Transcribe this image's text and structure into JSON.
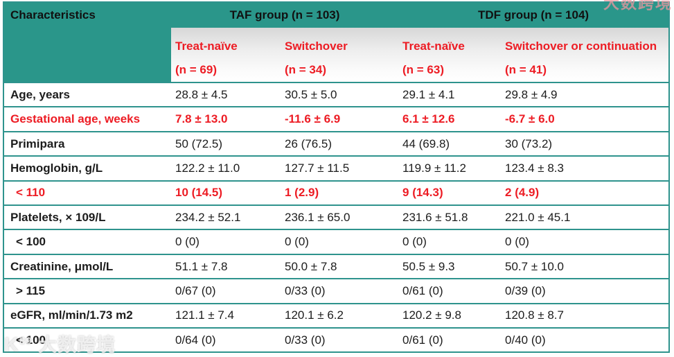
{
  "colors": {
    "header_teal": "#2A968A",
    "grid_line": "#2E938D",
    "highlight_red": "#ED1C24",
    "body_text": "#1C1C1C",
    "subheader_gradient_top": "#D7D7D7"
  },
  "table": {
    "col1_header": "Characteristics",
    "groups": [
      {
        "label": "TAF group (n = 103)",
        "subcols": [
          {
            "name": "Treat-naïve",
            "n": "(n = 69)"
          },
          {
            "name": "Switchover",
            "n": "(n = 34)"
          }
        ]
      },
      {
        "label": "TDF group (n = 104)",
        "subcols": [
          {
            "name": "Treat-naïve",
            "n": "(n = 63)"
          },
          {
            "name": "Switchover or continuation",
            "n": "(n = 41)"
          }
        ]
      }
    ],
    "rows": [
      {
        "label": "Age, years",
        "values": [
          "28.8 ± 4.5",
          "30.5 ± 5.0",
          "29.1 ± 4.1",
          "29.8 ± 4.9"
        ],
        "highlight": false,
        "indent": false
      },
      {
        "label": "Gestational age, weeks",
        "values": [
          "7.8 ± 13.0",
          "-11.6 ± 6.9",
          "6.1 ± 12.6",
          "-6.7 ± 6.0"
        ],
        "highlight": true,
        "indent": false
      },
      {
        "label": "Primipara",
        "values": [
          "50 (72.5)",
          "26 (76.5)",
          "44 (69.8)",
          "30 (73.2)"
        ],
        "highlight": false,
        "indent": false
      },
      {
        "label": "Hemoglobin, g/L",
        "values": [
          "122.2 ± 11.0",
          "127.7 ± 11.5",
          "119.9 ± 11.2",
          "123.4 ± 8.3"
        ],
        "highlight": false,
        "indent": false
      },
      {
        "label": "< 110",
        "values": [
          "10 (14.5)",
          "1 (2.9)",
          "9 (14.3)",
          "2 (4.9)"
        ],
        "highlight": true,
        "indent": true
      },
      {
        "label": "Platelets, × 109/L",
        "values": [
          "234.2 ± 52.1",
          "236.1 ± 65.0",
          "231.6 ± 51.8",
          "221.0 ± 45.1"
        ],
        "highlight": false,
        "indent": false
      },
      {
        "label": "< 100",
        "values": [
          "0 (0)",
          "0 (0)",
          "0 (0)",
          "0 (0)"
        ],
        "highlight": false,
        "indent": true
      },
      {
        "label": "Creatinine, μmol/L",
        "values": [
          "51.1 ± 7.8",
          "50.0 ± 7.8",
          "50.5 ± 9.3",
          "50.7 ± 10.0"
        ],
        "highlight": false,
        "indent": false
      },
      {
        "label": "> 115",
        "values": [
          "0/67 (0)",
          "0/33 (0)",
          "0/61 (0)",
          "0/39 (0)"
        ],
        "highlight": false,
        "indent": true
      },
      {
        "label": "eGFR, ml/min/1.73 m2",
        "values": [
          "121.1 ± 7.4",
          "120.1 ± 6.2",
          "120.2 ± 9.8",
          "120.8 ± 8.7"
        ],
        "highlight": false,
        "indent": false
      },
      {
        "label": "< 100",
        "values": [
          "0/64 (0)",
          "0/33 (0)",
          "0/61 (0)",
          "0/40 (0)"
        ],
        "highlight": false,
        "indent": true
      }
    ]
  },
  "watermarks": {
    "bottom_logo_main": "K",
    "bottom_logo_sup": "89",
    "bottom_text": "大数跨境",
    "top_text": "大数跨境"
  }
}
